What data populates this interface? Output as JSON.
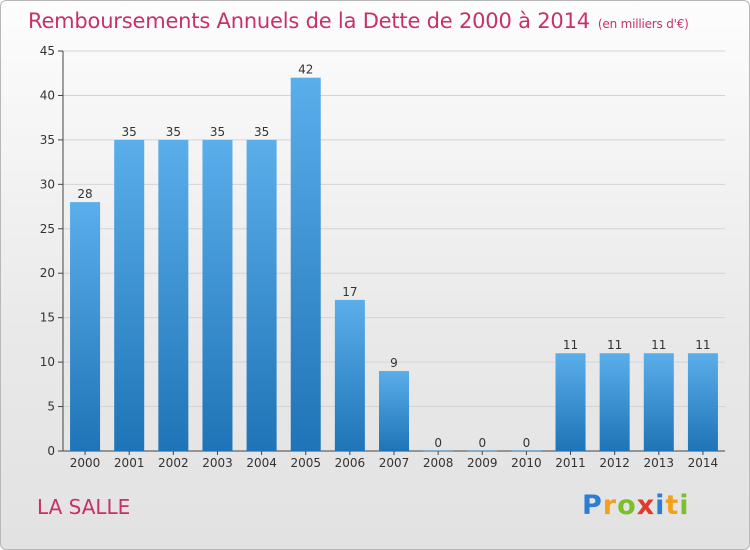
{
  "title": "Remboursements Annuels de la Dette de 2000 à 2014",
  "subtitle": "(en milliers d'€)",
  "location": "LA SALLE",
  "logo": {
    "text": "Proxiti",
    "letters": [
      "P",
      "r",
      "o",
      "x",
      "i",
      "t",
      "i"
    ],
    "colors": [
      "#2a7fd4",
      "#f2a11b",
      "#7bbf2a",
      "#e0392e",
      "#2a7fd4",
      "#f2a11b",
      "#7bbf2a"
    ]
  },
  "colors": {
    "bar_top": "#5aaeea",
    "bar_bottom": "#1f74b7",
    "title": "#c8306a",
    "grid": "#d4d4d4"
  },
  "chart_data": {
    "type": "bar",
    "title": "Remboursements Annuels de la Dette de 2000 à 2014",
    "subtitle": "(en milliers d'€)",
    "xlabel": "",
    "ylabel": "",
    "categories": [
      "2000",
      "2001",
      "2002",
      "2003",
      "2004",
      "2005",
      "2006",
      "2007",
      "2008",
      "2009",
      "2010",
      "2011",
      "2012",
      "2013",
      "2014"
    ],
    "values": [
      28,
      35,
      35,
      35,
      35,
      42,
      17,
      9,
      0,
      0,
      0,
      11,
      11,
      11,
      11
    ],
    "data_labels": [
      "28",
      "35",
      "35",
      "35",
      "35",
      "42",
      "17",
      "9",
      "0",
      "0",
      "0",
      "11",
      "11",
      "11",
      "11"
    ],
    "ylim": [
      0,
      45
    ],
    "yticks": [
      0,
      5,
      10,
      15,
      20,
      25,
      30,
      35,
      40,
      45
    ],
    "ytick_labels": [
      "0",
      "5",
      "10",
      "15",
      "20",
      "25",
      "30",
      "35",
      "40",
      "45"
    ],
    "grid": true,
    "legend": "none"
  }
}
